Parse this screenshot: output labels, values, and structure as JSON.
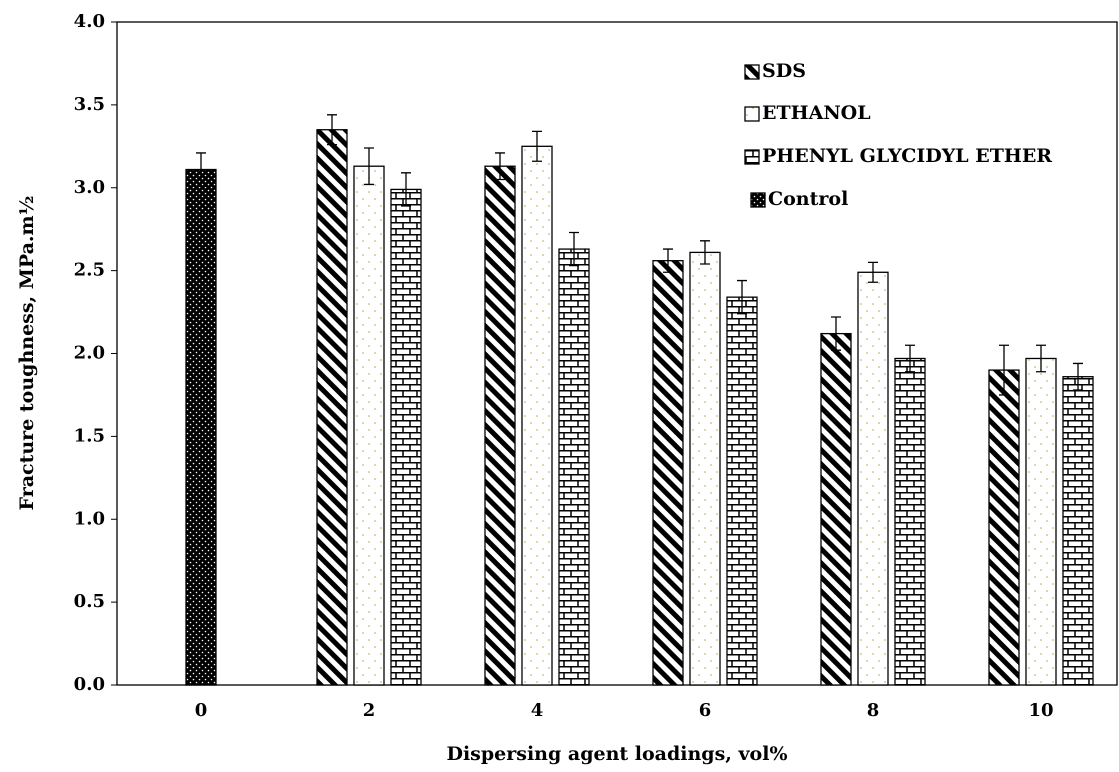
{
  "chart_data": {
    "type": "bar",
    "x_label": "Dispersing agent loadings, vol%",
    "y_label": "Fracture toughness, MPa.m½",
    "categories": [
      "0",
      "2",
      "4",
      "6",
      "8",
      "10"
    ],
    "series": [
      {
        "name": "SDS",
        "color": "#000000",
        "values": [
          null,
          3.35,
          3.13,
          2.56,
          2.12,
          1.9
        ],
        "errors": [
          null,
          0.09,
          0.08,
          0.07,
          0.1,
          0.15
        ]
      },
      {
        "name": "ETHANOL",
        "color": "#ffffff",
        "values": [
          null,
          3.13,
          3.25,
          2.61,
          2.49,
          1.97
        ],
        "errors": [
          null,
          0.11,
          0.09,
          0.07,
          0.06,
          0.08
        ]
      },
      {
        "name": "PHENYL GLYCIDYL ETHER",
        "color": "#ffffff",
        "values": [
          null,
          2.99,
          2.63,
          2.34,
          1.97,
          1.86
        ],
        "errors": [
          null,
          0.1,
          0.1,
          0.1,
          0.08,
          0.08
        ]
      },
      {
        "name": "Control",
        "color": "#000000",
        "values": [
          3.11,
          null,
          null,
          null,
          null,
          null
        ],
        "errors": [
          0.1,
          null,
          null,
          null,
          null,
          null
        ]
      }
    ],
    "ylim": [
      0,
      4
    ],
    "yticks": [
      {
        "value": 0,
        "label": "0.0"
      },
      0.5,
      {
        "value": 1,
        "label": "1.0"
      },
      1.5,
      {
        "value": 2,
        "label": "2.0"
      },
      2.5,
      {
        "value": 3,
        "label": "3.0"
      },
      3.5,
      {
        "value": 4,
        "label": "4.0"
      }
    ],
    "legend": "top-right"
  }
}
